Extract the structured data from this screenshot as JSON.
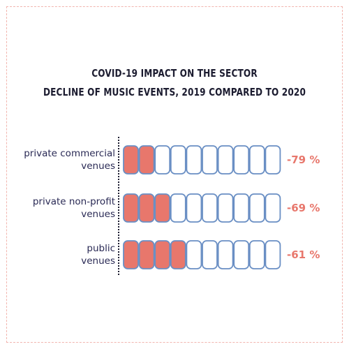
{
  "title_line1": "COVID-19 IMPACT ON THE SECTOR",
  "title_line2": "DECLINE OF MUSIC EVENTS, 2019 COMPARED TO 2020",
  "colors": {
    "filled": "#e8776c",
    "empty": "#ffffff",
    "outline": "#6a8fc4",
    "value_text": "#e8776c",
    "frame": "#f2b5ae"
  },
  "chart_data": {
    "type": "bar",
    "title": "COVID-19 IMPACT ON THE SECTOR / DECLINE OF MUSIC EVENTS, 2019 COMPARED TO 2020",
    "categories": [
      [
        "private commercial",
        "venues"
      ],
      [
        "private non-profit",
        "venues"
      ],
      [
        "public",
        "venues"
      ]
    ],
    "values": [
      -79,
      -69,
      -61
    ],
    "value_labels": [
      "-79 %",
      "-69 %",
      "-61 %"
    ],
    "unit_count": 10,
    "filled_units": [
      2,
      3,
      4
    ]
  }
}
